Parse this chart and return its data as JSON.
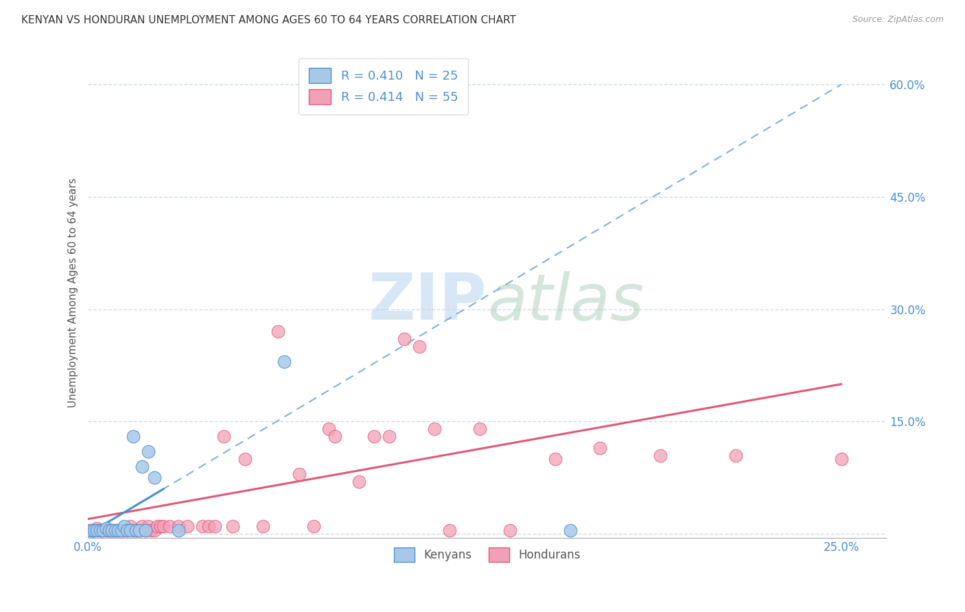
{
  "title": "KENYAN VS HONDURAN UNEMPLOYMENT AMONG AGES 60 TO 64 YEARS CORRELATION CHART",
  "source": "Source: ZipAtlas.com",
  "ylabel": "Unemployment Among Ages 60 to 64 years",
  "xlim": [
    0.0,
    0.265
  ],
  "ylim": [
    -0.005,
    0.65
  ],
  "kenyan_R": 0.41,
  "kenyan_N": 25,
  "honduran_R": 0.414,
  "honduran_N": 55,
  "kenyan_color": "#a8c8e8",
  "honduran_color": "#f2a0b8",
  "kenyan_line_color": "#4a90d0",
  "honduran_line_color": "#e05878",
  "watermark_text": "ZIPatlas",
  "background_color": "#ffffff",
  "grid_color": "#c8d8e8",
  "kenyan_x": [
    0.0,
    0.001,
    0.002,
    0.003,
    0.004,
    0.005,
    0.006,
    0.007,
    0.008,
    0.009,
    0.01,
    0.011,
    0.012,
    0.013,
    0.014,
    0.015,
    0.016,
    0.017,
    0.018,
    0.019,
    0.02,
    0.022,
    0.03,
    0.065,
    0.16
  ],
  "kenyan_y": [
    0.0,
    0.005,
    0.005,
    0.005,
    0.005,
    0.005,
    0.008,
    0.005,
    0.005,
    0.005,
    0.005,
    0.005,
    0.01,
    0.005,
    0.005,
    0.13,
    0.005,
    0.005,
    0.09,
    0.005,
    0.11,
    0.075,
    0.005,
    0.23,
    0.005
  ],
  "honduran_x": [
    0.0,
    0.001,
    0.002,
    0.003,
    0.004,
    0.005,
    0.006,
    0.007,
    0.008,
    0.009,
    0.01,
    0.011,
    0.012,
    0.013,
    0.014,
    0.015,
    0.016,
    0.017,
    0.018,
    0.019,
    0.02,
    0.021,
    0.022,
    0.023,
    0.024,
    0.025,
    0.027,
    0.03,
    0.033,
    0.038,
    0.04,
    0.042,
    0.045,
    0.048,
    0.052,
    0.058,
    0.063,
    0.07,
    0.075,
    0.08,
    0.082,
    0.09,
    0.095,
    0.1,
    0.105,
    0.11,
    0.115,
    0.12,
    0.13,
    0.14,
    0.155,
    0.17,
    0.19,
    0.215,
    0.25
  ],
  "honduran_y": [
    0.005,
    0.005,
    0.005,
    0.008,
    0.005,
    0.005,
    0.005,
    0.005,
    0.005,
    0.005,
    0.005,
    0.005,
    0.005,
    0.005,
    0.01,
    0.005,
    0.005,
    0.005,
    0.01,
    0.005,
    0.01,
    0.005,
    0.005,
    0.01,
    0.01,
    0.01,
    0.01,
    0.01,
    0.01,
    0.01,
    0.01,
    0.01,
    0.13,
    0.01,
    0.1,
    0.01,
    0.27,
    0.08,
    0.01,
    0.14,
    0.13,
    0.07,
    0.13,
    0.13,
    0.26,
    0.25,
    0.14,
    0.005,
    0.14,
    0.005,
    0.1,
    0.115,
    0.105,
    0.105,
    0.1
  ],
  "kenyan_line_x0": 0.0,
  "kenyan_line_y0": 0.0,
  "kenyan_line_x1": 0.25,
  "kenyan_line_y1": 0.6,
  "honduran_line_x0": 0.0,
  "honduran_line_y0": 0.02,
  "honduran_line_x1": 0.25,
  "honduran_line_y1": 0.2
}
